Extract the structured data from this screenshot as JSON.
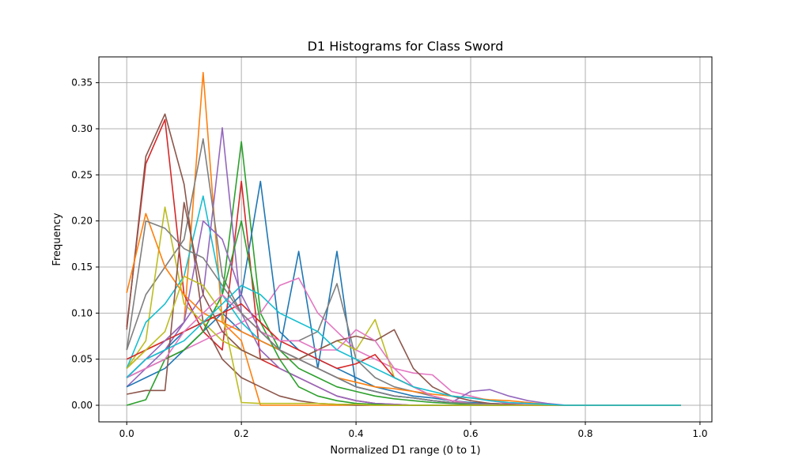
{
  "chart_data": {
    "type": "line",
    "title": "D1 Histograms for Class Sword",
    "xlabel": "Normalized D1 range (0 to 1)",
    "ylabel": "Frequency",
    "xlim": [
      -0.0486,
      1.0208
    ],
    "ylim": [
      -0.018,
      0.378
    ],
    "xticks": [
      0.0,
      0.2,
      0.4,
      0.6,
      0.8,
      1.0
    ],
    "xtick_labels": [
      "0.0",
      "0.2",
      "0.4",
      "0.6",
      "0.8",
      "1.0"
    ],
    "yticks": [
      0.0,
      0.05,
      0.1,
      0.15,
      0.2,
      0.25,
      0.3,
      0.35
    ],
    "ytick_labels": [
      "0.00",
      "0.05",
      "0.10",
      "0.15",
      "0.20",
      "0.25",
      "0.30",
      "0.35"
    ],
    "grid": true,
    "legend": "none",
    "x": [
      0.0,
      0.0333,
      0.0667,
      0.1,
      0.1333,
      0.1667,
      0.2,
      0.2333,
      0.2667,
      0.3,
      0.3333,
      0.3667,
      0.4,
      0.4333,
      0.4667,
      0.5,
      0.5333,
      0.5667,
      0.6,
      0.6333,
      0.6667,
      0.7,
      0.7333,
      0.7667,
      0.8,
      0.8333,
      0.8667,
      0.9,
      0.9333,
      0.9667
    ],
    "series": [
      {
        "color": "#1f77b4",
        "values": [
          0.03,
          0.05,
          0.06,
          0.08,
          0.09,
          0.1,
          0.08,
          0.07,
          0.06,
          0.167,
          0.04,
          0.167,
          0.02,
          0.015,
          0.01,
          0.008,
          0.005,
          0.003,
          0.002,
          0.001,
          0,
          0,
          0,
          0,
          0,
          0,
          0,
          0,
          0,
          0
        ]
      },
      {
        "color": "#ff7f0e",
        "values": [
          0.04,
          0.06,
          0.07,
          0.09,
          0.361,
          0.09,
          0.07,
          0.0,
          0.0,
          0.0,
          0.0,
          0.0,
          0.0,
          0.0,
          0.0,
          0.0,
          0.0,
          0.0,
          0.0,
          0.0,
          0,
          0,
          0,
          0,
          0,
          0,
          0,
          0,
          0,
          0
        ]
      },
      {
        "color": "#2ca02c",
        "values": [
          0.03,
          0.04,
          0.05,
          0.06,
          0.08,
          0.12,
          0.286,
          0.1,
          0.06,
          0.04,
          0.03,
          0.02,
          0.015,
          0.01,
          0.007,
          0.005,
          0.003,
          0.002,
          0.001,
          0,
          0,
          0,
          0,
          0,
          0,
          0,
          0,
          0,
          0,
          0
        ]
      },
      {
        "color": "#d62728",
        "values": [
          0.085,
          0.262,
          0.31,
          0.12,
          0.08,
          0.06,
          0.243,
          0.05,
          0.04,
          0.03,
          0.02,
          0.01,
          0.005,
          0.002,
          0.001,
          0,
          0,
          0,
          0,
          0,
          0,
          0,
          0,
          0,
          0,
          0,
          0,
          0,
          0,
          0
        ]
      },
      {
        "color": "#9467bd",
        "values": [
          0.02,
          0.04,
          0.06,
          0.09,
          0.12,
          0.301,
          0.1,
          0.06,
          0.04,
          0.03,
          0.02,
          0.01,
          0.005,
          0.002,
          0.001,
          0,
          0,
          0,
          0,
          0,
          0,
          0,
          0,
          0,
          0,
          0,
          0,
          0,
          0,
          0
        ]
      },
      {
        "color": "#8c564b",
        "values": [
          0.082,
          0.27,
          0.316,
          0.24,
          0.09,
          0.05,
          0.03,
          0.02,
          0.01,
          0.005,
          0.002,
          0.001,
          0,
          0,
          0,
          0,
          0,
          0,
          0,
          0,
          0,
          0,
          0,
          0,
          0,
          0,
          0,
          0,
          0,
          0
        ]
      },
      {
        "color": "#e377c2",
        "values": [
          0.03,
          0.04,
          0.05,
          0.06,
          0.07,
          0.08,
          0.09,
          0.1,
          0.13,
          0.138,
          0.1,
          0.08,
          0.06,
          0.05,
          0.04,
          0.035,
          0.033,
          0.015,
          0.01,
          0.005,
          0.002,
          0.001,
          0,
          0,
          0,
          0,
          0,
          0,
          0,
          0
        ]
      },
      {
        "color": "#7f7f7f",
        "values": [
          0.06,
          0.12,
          0.15,
          0.18,
          0.289,
          0.14,
          0.1,
          0.08,
          0.07,
          0.07,
          0.08,
          0.132,
          0.05,
          0.03,
          0.02,
          0.015,
          0.01,
          0.005,
          0.002,
          0.001,
          0,
          0,
          0,
          0,
          0,
          0,
          0,
          0,
          0,
          0
        ]
      },
      {
        "color": "#bcbd22",
        "values": [
          0.04,
          0.07,
          0.215,
          0.11,
          0.09,
          0.07,
          0.06,
          0.05,
          0.05,
          0.05,
          0.06,
          0.07,
          0.06,
          0.093,
          0.03,
          0.02,
          0.01,
          0.005,
          0.002,
          0.001,
          0,
          0,
          0,
          0,
          0,
          0,
          0,
          0,
          0,
          0
        ]
      },
      {
        "color": "#17becf",
        "values": [
          0.04,
          0.09,
          0.11,
          0.14,
          0.227,
          0.12,
          0.09,
          0.07,
          0.06,
          0.05,
          0.04,
          0.03,
          0.02,
          0.015,
          0.01,
          0.008,
          0.005,
          0.003,
          0.002,
          0.001,
          0,
          0,
          0,
          0,
          0,
          0,
          0,
          0,
          0,
          0
        ]
      },
      {
        "color": "#1f77b4",
        "values": [
          0.02,
          0.03,
          0.04,
          0.06,
          0.08,
          0.1,
          0.12,
          0.243,
          0.08,
          0.06,
          0.05,
          0.04,
          0.03,
          0.02,
          0.015,
          0.01,
          0.008,
          0.005,
          0.003,
          0.002,
          0.001,
          0,
          0,
          0,
          0,
          0,
          0,
          0,
          0,
          0
        ]
      },
      {
        "color": "#ff7f0e",
        "values": [
          0.122,
          0.208,
          0.15,
          0.12,
          0.1,
          0.09,
          0.08,
          0.07,
          0.06,
          0.05,
          0.04,
          0.03,
          0.025,
          0.02,
          0.018,
          0.015,
          0.012,
          0.01,
          0.008,
          0.006,
          0.005,
          0.003,
          0.001,
          0,
          0,
          0,
          0,
          0,
          0,
          0
        ]
      },
      {
        "color": "#2ca02c",
        "values": [
          0.0,
          0.006,
          0.05,
          0.06,
          0.08,
          0.12,
          0.2,
          0.09,
          0.05,
          0.02,
          0.01,
          0.005,
          0.002,
          0.001,
          0,
          0,
          0,
          0,
          0,
          0,
          0,
          0,
          0,
          0,
          0,
          0,
          0,
          0,
          0,
          0
        ]
      },
      {
        "color": "#d62728",
        "values": [
          0.05,
          0.06,
          0.07,
          0.08,
          0.09,
          0.1,
          0.11,
          0.09,
          0.07,
          0.06,
          0.05,
          0.04,
          0.045,
          0.055,
          0.03,
          0.02,
          0.01,
          0.005,
          0.002,
          0.001,
          0,
          0,
          0,
          0,
          0,
          0,
          0,
          0,
          0,
          0
        ]
      },
      {
        "color": "#9467bd",
        "values": [
          0.03,
          0.05,
          0.07,
          0.09,
          0.2,
          0.18,
          0.12,
          0.08,
          0.06,
          0.05,
          0.04,
          0.03,
          0.02,
          0.015,
          0.01,
          0.008,
          0.005,
          0.003,
          0.015,
          0.017,
          0.01,
          0.005,
          0.002,
          0,
          0,
          0,
          0,
          0,
          0,
          0
        ]
      },
      {
        "color": "#8c564b",
        "values": [
          0.012,
          0.016,
          0.016,
          0.22,
          0.12,
          0.08,
          0.06,
          0.05,
          0.05,
          0.05,
          0.06,
          0.07,
          0.075,
          0.07,
          0.082,
          0.04,
          0.02,
          0.01,
          0.005,
          0.002,
          0.001,
          0,
          0,
          0,
          0,
          0,
          0,
          0,
          0,
          0
        ]
      },
      {
        "color": "#e377c2",
        "values": [
          0.03,
          0.04,
          0.05,
          0.08,
          0.1,
          0.12,
          0.1,
          0.08,
          0.07,
          0.07,
          0.06,
          0.06,
          0.082,
          0.07,
          0.04,
          0.02,
          0.01,
          0.005,
          0.002,
          0.001,
          0,
          0,
          0,
          0,
          0,
          0,
          0,
          0,
          0,
          0
        ]
      },
      {
        "color": "#7f7f7f",
        "values": [
          0.06,
          0.2,
          0.192,
          0.17,
          0.16,
          0.13,
          0.1,
          0.08,
          0.06,
          0.05,
          0.04,
          0.03,
          0.02,
          0.015,
          0.01,
          0.008,
          0.005,
          0.003,
          0.002,
          0.001,
          0,
          0,
          0,
          0,
          0,
          0,
          0,
          0,
          0,
          0
        ]
      },
      {
        "color": "#bcbd22",
        "values": [
          0.04,
          0.06,
          0.08,
          0.14,
          0.13,
          0.1,
          0.003,
          0.002,
          0.002,
          0.002,
          0.002,
          0.001,
          0.001,
          0,
          0,
          0,
          0,
          0,
          0,
          0,
          0,
          0,
          0,
          0,
          0,
          0,
          0,
          0,
          0,
          0
        ]
      },
      {
        "color": "#17becf",
        "values": [
          0.03,
          0.05,
          0.06,
          0.07,
          0.09,
          0.11,
          0.13,
          0.12,
          0.1,
          0.09,
          0.08,
          0.06,
          0.05,
          0.04,
          0.03,
          0.02,
          0.015,
          0.01,
          0.008,
          0.005,
          0.003,
          0.002,
          0.001,
          0,
          0,
          0,
          0,
          0,
          0,
          0
        ]
      }
    ]
  }
}
